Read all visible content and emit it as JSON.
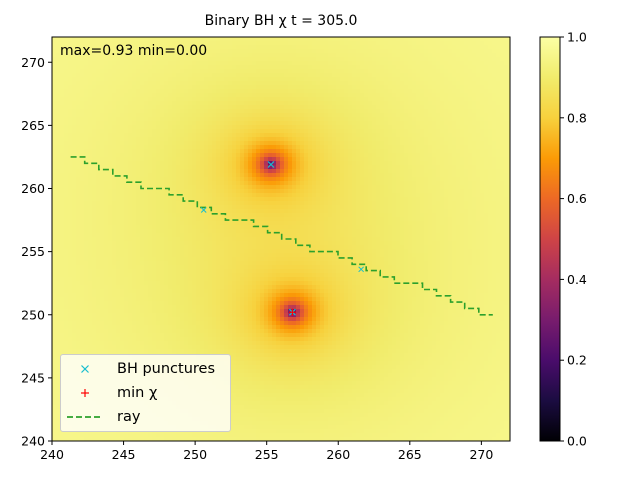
{
  "chart_data": {
    "type": "heatmap",
    "title": "Binary BH χ t = 305.0",
    "annotation": "max=0.93 min=0.00",
    "xlim": [
      240,
      272
    ],
    "ylim": [
      240,
      272
    ],
    "x_ticks": [
      "240",
      "245",
      "250",
      "255",
      "260",
      "265",
      "270"
    ],
    "y_ticks": [
      "240",
      "245",
      "250",
      "255",
      "260",
      "265",
      "270"
    ],
    "colormap": "inferno",
    "color_range": [
      0.0,
      1.0
    ],
    "colorbar_ticks": [
      "0.0",
      "0.2",
      "0.4",
      "0.6",
      "0.8",
      "1.0"
    ],
    "chi_max": 0.93,
    "chi_min": 0.0,
    "grid": false,
    "legend_position": "lower-left",
    "bh_punctures": {
      "label": "BH punctures",
      "marker": "x",
      "color": "#17becf",
      "points": [
        [
          255.3,
          261.9
        ],
        [
          256.8,
          250.2
        ]
      ]
    },
    "min_chi": {
      "label": "min χ",
      "marker": "+",
      "color": "#ff0000",
      "points": [
        [
          256.8,
          250.2
        ]
      ]
    },
    "ray": {
      "label": "ray",
      "style": "dashed",
      "color": "#2ca02c",
      "start": [
        241.3,
        262.3
      ],
      "end": [
        270.8,
        249.8
      ]
    },
    "ray_crossings": [
      [
        250.6,
        258.3
      ],
      [
        261.6,
        253.6
      ]
    ]
  }
}
